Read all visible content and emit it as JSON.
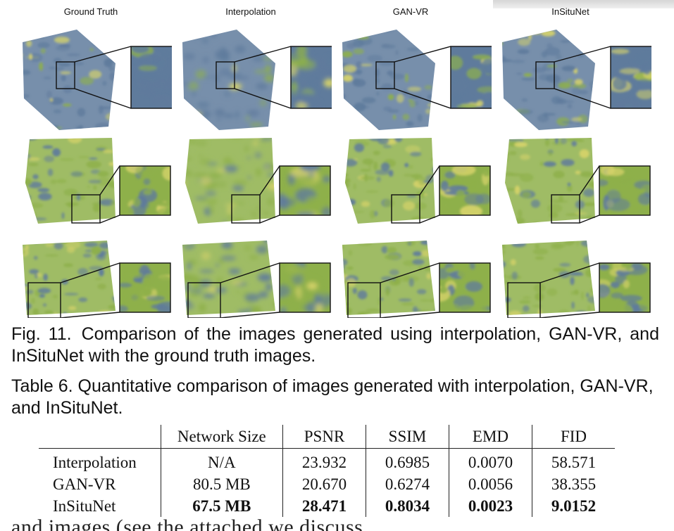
{
  "figure": {
    "column_titles": [
      "Ground Truth",
      "Interpolation",
      "GAN-VR",
      "InSituNet"
    ],
    "row_count": 3,
    "colors": {
      "volume_blue": "#5f7b9c",
      "volume_green": "#8eb04a",
      "highlight_yellow": "#d6d36a",
      "zoom_frame": "#111111"
    }
  },
  "captions": {
    "figure_label": "Fig. 11.",
    "figure_text": "Comparison of the images generated using interpolation, GAN-VR, and InSituNet with the ground truth images.",
    "table_text": "Table 6. Quantitative comparison of images generated with interpolation, GAN-VR, and InSituNet."
  },
  "table": {
    "headers": [
      "",
      "Network Size",
      "PSNR",
      "SSIM",
      "EMD",
      "FID"
    ],
    "rows": [
      {
        "label": "Interpolation",
        "cells": [
          "N/A",
          "23.932",
          "0.6985",
          "0.0070",
          "58.571"
        ],
        "bold": false
      },
      {
        "label": "GAN-VR",
        "cells": [
          "80.5 MB",
          "20.670",
          "0.6274",
          "0.0056",
          "38.355"
        ],
        "bold": false
      },
      {
        "label": "InSituNet",
        "cells": [
          "67.5 MB",
          "28.471",
          "0.8034",
          "0.0023",
          "9.0152"
        ],
        "bold": true
      }
    ]
  },
  "body_text_fragment": "and images (see the attached we discuss"
}
